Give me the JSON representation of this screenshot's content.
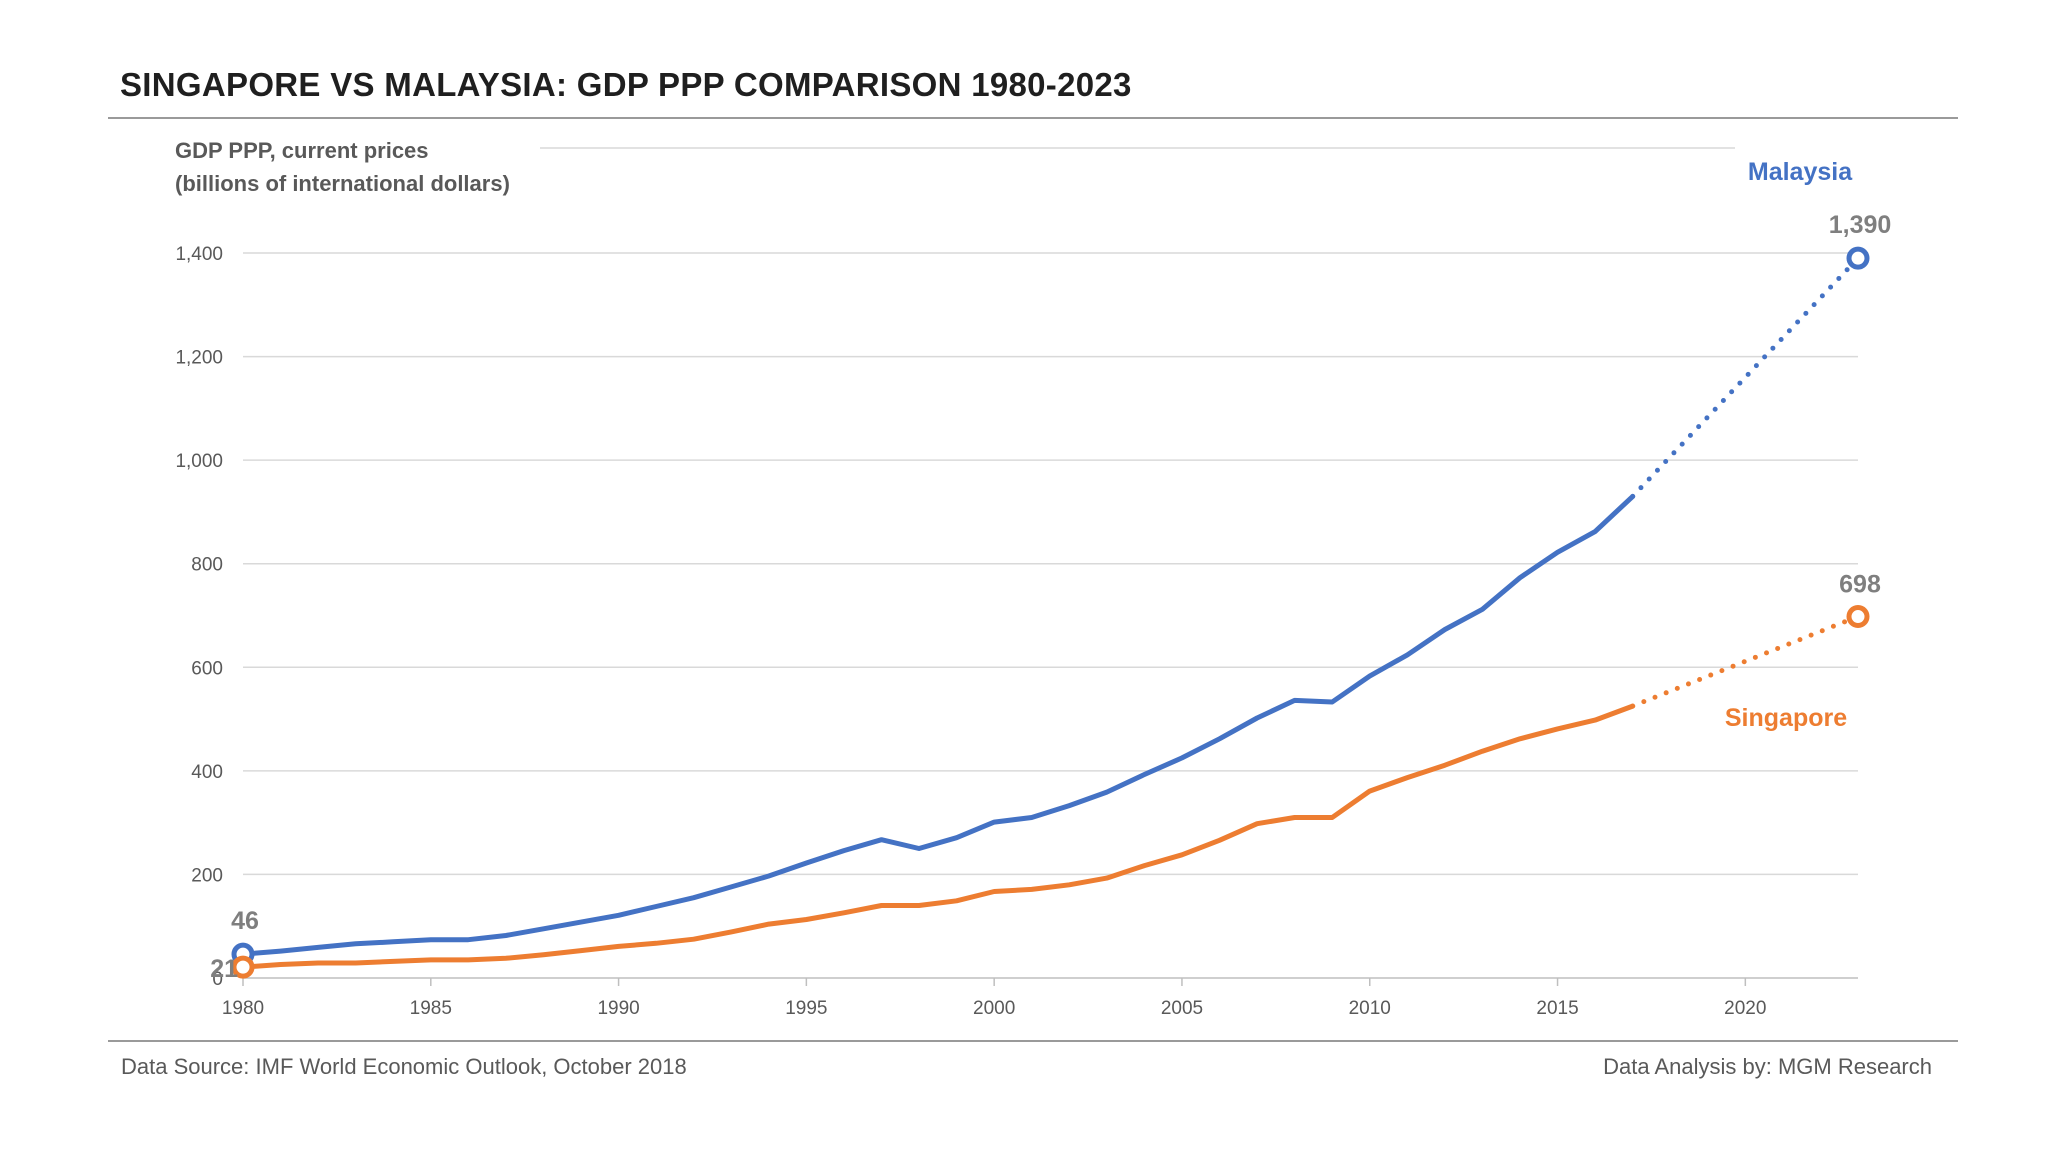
{
  "header": {
    "title": "SINGAPORE VS MALAYSIA: GDP PPP COMPARISON 1980-2023"
  },
  "footer": {
    "source": "Data Source: IMF World Economic Outlook, October 2018",
    "credit": "Data Analysis by: MGM Research"
  },
  "colors": {
    "malaysia": "#4472C4",
    "singapore": "#ED7D31",
    "grid": "#d9d9d9",
    "axis_text": "#595959",
    "label_text": "#7f7f7f"
  },
  "chart_data": {
    "type": "line",
    "title": "SINGAPORE VS MALAYSIA: GDP PPP COMPARISON 1980-2023",
    "ylabel_lines": [
      "GDP PPP, current prices",
      "(billions of international dollars)"
    ],
    "xlabel": "",
    "xlim": [
      1980,
      2023
    ],
    "ylim": [
      0,
      1400
    ],
    "xticks": [
      1980,
      1985,
      1990,
      1995,
      2000,
      2005,
      2010,
      2015,
      2020
    ],
    "yticks": [
      0,
      200,
      400,
      600,
      800,
      1000,
      1200,
      1400
    ],
    "ytick_labels": [
      "0",
      "200",
      "400",
      "600",
      "800",
      "1,000",
      "1,200",
      "1,400"
    ],
    "grid": true,
    "legend": "inline-right",
    "forecast_start": 2017,
    "series": [
      {
        "name": "Malaysia",
        "color": "#4472C4",
        "x": [
          1980,
          1981,
          1982,
          1983,
          1984,
          1985,
          1986,
          1987,
          1988,
          1989,
          1990,
          1991,
          1992,
          1993,
          1994,
          1995,
          1996,
          1997,
          1998,
          1999,
          2000,
          2001,
          2002,
          2003,
          2004,
          2005,
          2006,
          2007,
          2008,
          2009,
          2010,
          2011,
          2012,
          2013,
          2014,
          2015,
          2016,
          2017,
          2023
        ],
        "values": [
          46,
          52,
          59,
          66,
          70,
          74,
          74,
          82,
          95,
          108,
          121,
          138,
          155,
          176,
          197,
          222,
          246,
          267,
          250,
          271,
          301,
          310,
          333,
          359,
          393,
          425,
          462,
          502,
          536,
          533,
          583,
          624,
          673,
          712,
          773,
          822,
          862,
          930,
          1390
        ],
        "start_label": "46",
        "end_label": "1,390"
      },
      {
        "name": "Singapore",
        "color": "#ED7D31",
        "x": [
          1980,
          1981,
          1982,
          1983,
          1984,
          1985,
          1986,
          1987,
          1988,
          1989,
          1990,
          1991,
          1992,
          1993,
          1994,
          1995,
          1996,
          1997,
          1998,
          1999,
          2000,
          2001,
          2002,
          2003,
          2004,
          2005,
          2006,
          2007,
          2008,
          2009,
          2010,
          2011,
          2012,
          2013,
          2014,
          2015,
          2016,
          2017,
          2023
        ],
        "values": [
          21,
          26,
          29,
          29,
          32,
          35,
          35,
          38,
          45,
          53,
          61,
          67,
          75,
          89,
          104,
          113,
          126,
          140,
          140,
          149,
          167,
          171,
          180,
          193,
          217,
          238,
          266,
          298,
          310,
          310,
          361,
          387,
          411,
          438,
          462,
          481,
          498,
          525,
          698
        ],
        "start_label": "21",
        "end_label": "698"
      }
    ]
  }
}
